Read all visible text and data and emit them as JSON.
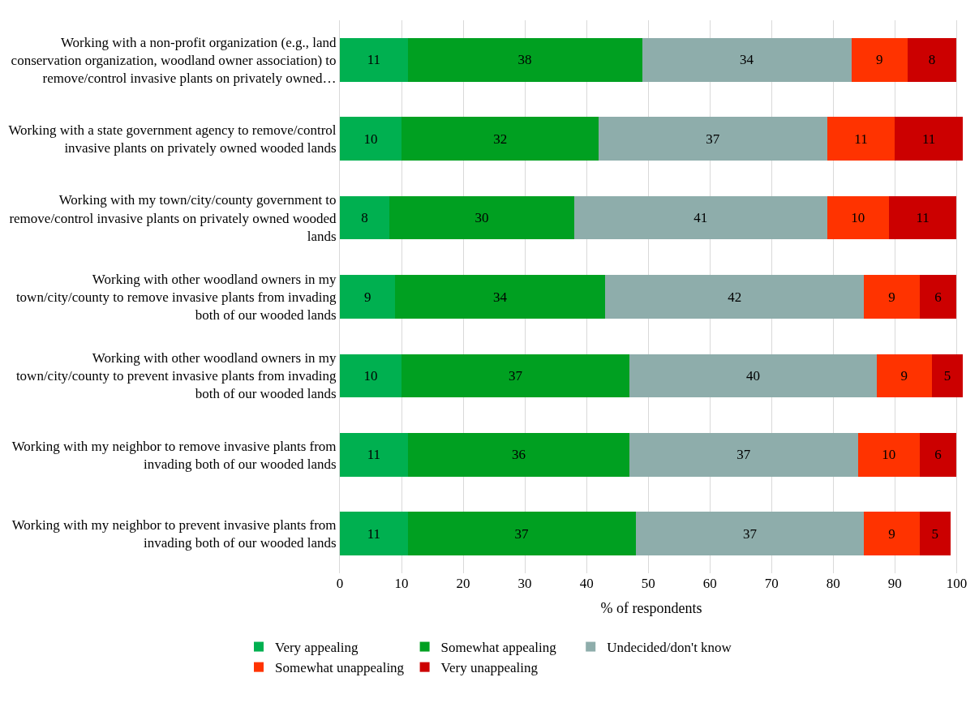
{
  "chart_data": {
    "type": "bar",
    "orientation": "horizontal",
    "stacked": true,
    "xlabel": "% of respondents",
    "categories": [
      "Working with a non-profit organization (e.g., land\nconservation organization, woodland owner association) to\nremove/control invasive plants on privately owned…",
      "Working with a state government agency to remove/control\ninvasive plants on privately owned wooded lands",
      "Working with my town/city/county government to\nremove/control invasive plants on privately owned wooded\nlands",
      "Working with other woodland owners in my\ntown/city/county to remove invasive plants from invading\nboth of our wooded lands",
      "Working with other woodland owners in my\ntown/city/county to prevent invasive plants from invading\nboth of our wooded lands",
      "Working with my neighbor to remove invasive plants from\ninvading both of our wooded lands",
      "Working with my neighbor to prevent invasive plants from\ninvading both of our wooded lands"
    ],
    "series": [
      {
        "name": "Very appealing",
        "color": "#00b050",
        "values": [
          11,
          10,
          8,
          9,
          10,
          11,
          11
        ]
      },
      {
        "name": "Somewhat appealing",
        "color": "#00a021",
        "values": [
          38,
          32,
          30,
          34,
          37,
          36,
          37
        ]
      },
      {
        "name": "Undecided/don't know",
        "color": "#8eadab",
        "values": [
          34,
          37,
          41,
          42,
          40,
          37,
          37
        ]
      },
      {
        "name": "Somewhat unappealing",
        "color": "#ff3300",
        "values": [
          9,
          11,
          10,
          9,
          9,
          10,
          9
        ]
      },
      {
        "name": "Very unappealing",
        "color": "#cc0000",
        "values": [
          8,
          11,
          11,
          6,
          5,
          6,
          5
        ]
      }
    ],
    "xlim": [
      0,
      101
    ],
    "xticks": [
      0,
      10,
      20,
      30,
      40,
      50,
      60,
      70,
      80,
      90,
      100
    ],
    "grid": "x",
    "legend": "bottom",
    "data_labels": true
  }
}
